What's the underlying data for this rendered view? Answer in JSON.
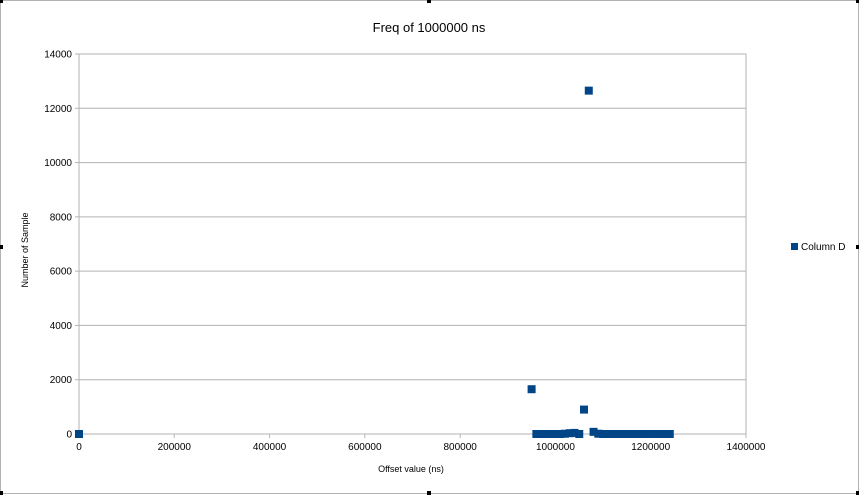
{
  "chart_data": {
    "type": "scatter",
    "title": "Freq of 1000000 ns",
    "xlabel": "Offset value (ns)",
    "ylabel": "Number of Sample",
    "xlim": [
      0,
      1400000
    ],
    "ylim": [
      0,
      14000
    ],
    "x_ticks": [
      "0",
      "200000",
      "400000",
      "600000",
      "800000",
      "1000000",
      "1200000",
      "1400000"
    ],
    "y_ticks": [
      "0",
      "2000",
      "4000",
      "6000",
      "8000",
      "10000",
      "12000",
      "14000"
    ],
    "grid": true,
    "legend_position": "right",
    "marker_color": "#004586",
    "series": [
      {
        "name": "Column D",
        "points": [
          {
            "x": 0,
            "y": 0
          },
          {
            "x": 950000,
            "y": 1650
          },
          {
            "x": 960000,
            "y": 0
          },
          {
            "x": 970000,
            "y": 0
          },
          {
            "x": 980000,
            "y": 0
          },
          {
            "x": 990000,
            "y": 0
          },
          {
            "x": 1000000,
            "y": 0
          },
          {
            "x": 1010000,
            "y": 0
          },
          {
            "x": 1020000,
            "y": 10
          },
          {
            "x": 1030000,
            "y": 30
          },
          {
            "x": 1040000,
            "y": 40
          },
          {
            "x": 1050000,
            "y": 0
          },
          {
            "x": 1060000,
            "y": 900
          },
          {
            "x": 1070000,
            "y": 12650
          },
          {
            "x": 1080000,
            "y": 80
          },
          {
            "x": 1090000,
            "y": 10
          },
          {
            "x": 1100000,
            "y": 0
          },
          {
            "x": 1110000,
            "y": 0
          },
          {
            "x": 1120000,
            "y": 0
          },
          {
            "x": 1130000,
            "y": 0
          },
          {
            "x": 1140000,
            "y": 0
          },
          {
            "x": 1150000,
            "y": 0
          },
          {
            "x": 1160000,
            "y": 0
          },
          {
            "x": 1170000,
            "y": 0
          },
          {
            "x": 1180000,
            "y": 0
          },
          {
            "x": 1190000,
            "y": 0
          },
          {
            "x": 1200000,
            "y": 0
          },
          {
            "x": 1210000,
            "y": 0
          },
          {
            "x": 1220000,
            "y": 0
          },
          {
            "x": 1230000,
            "y": 0
          },
          {
            "x": 1240000,
            "y": 0
          }
        ]
      }
    ]
  }
}
